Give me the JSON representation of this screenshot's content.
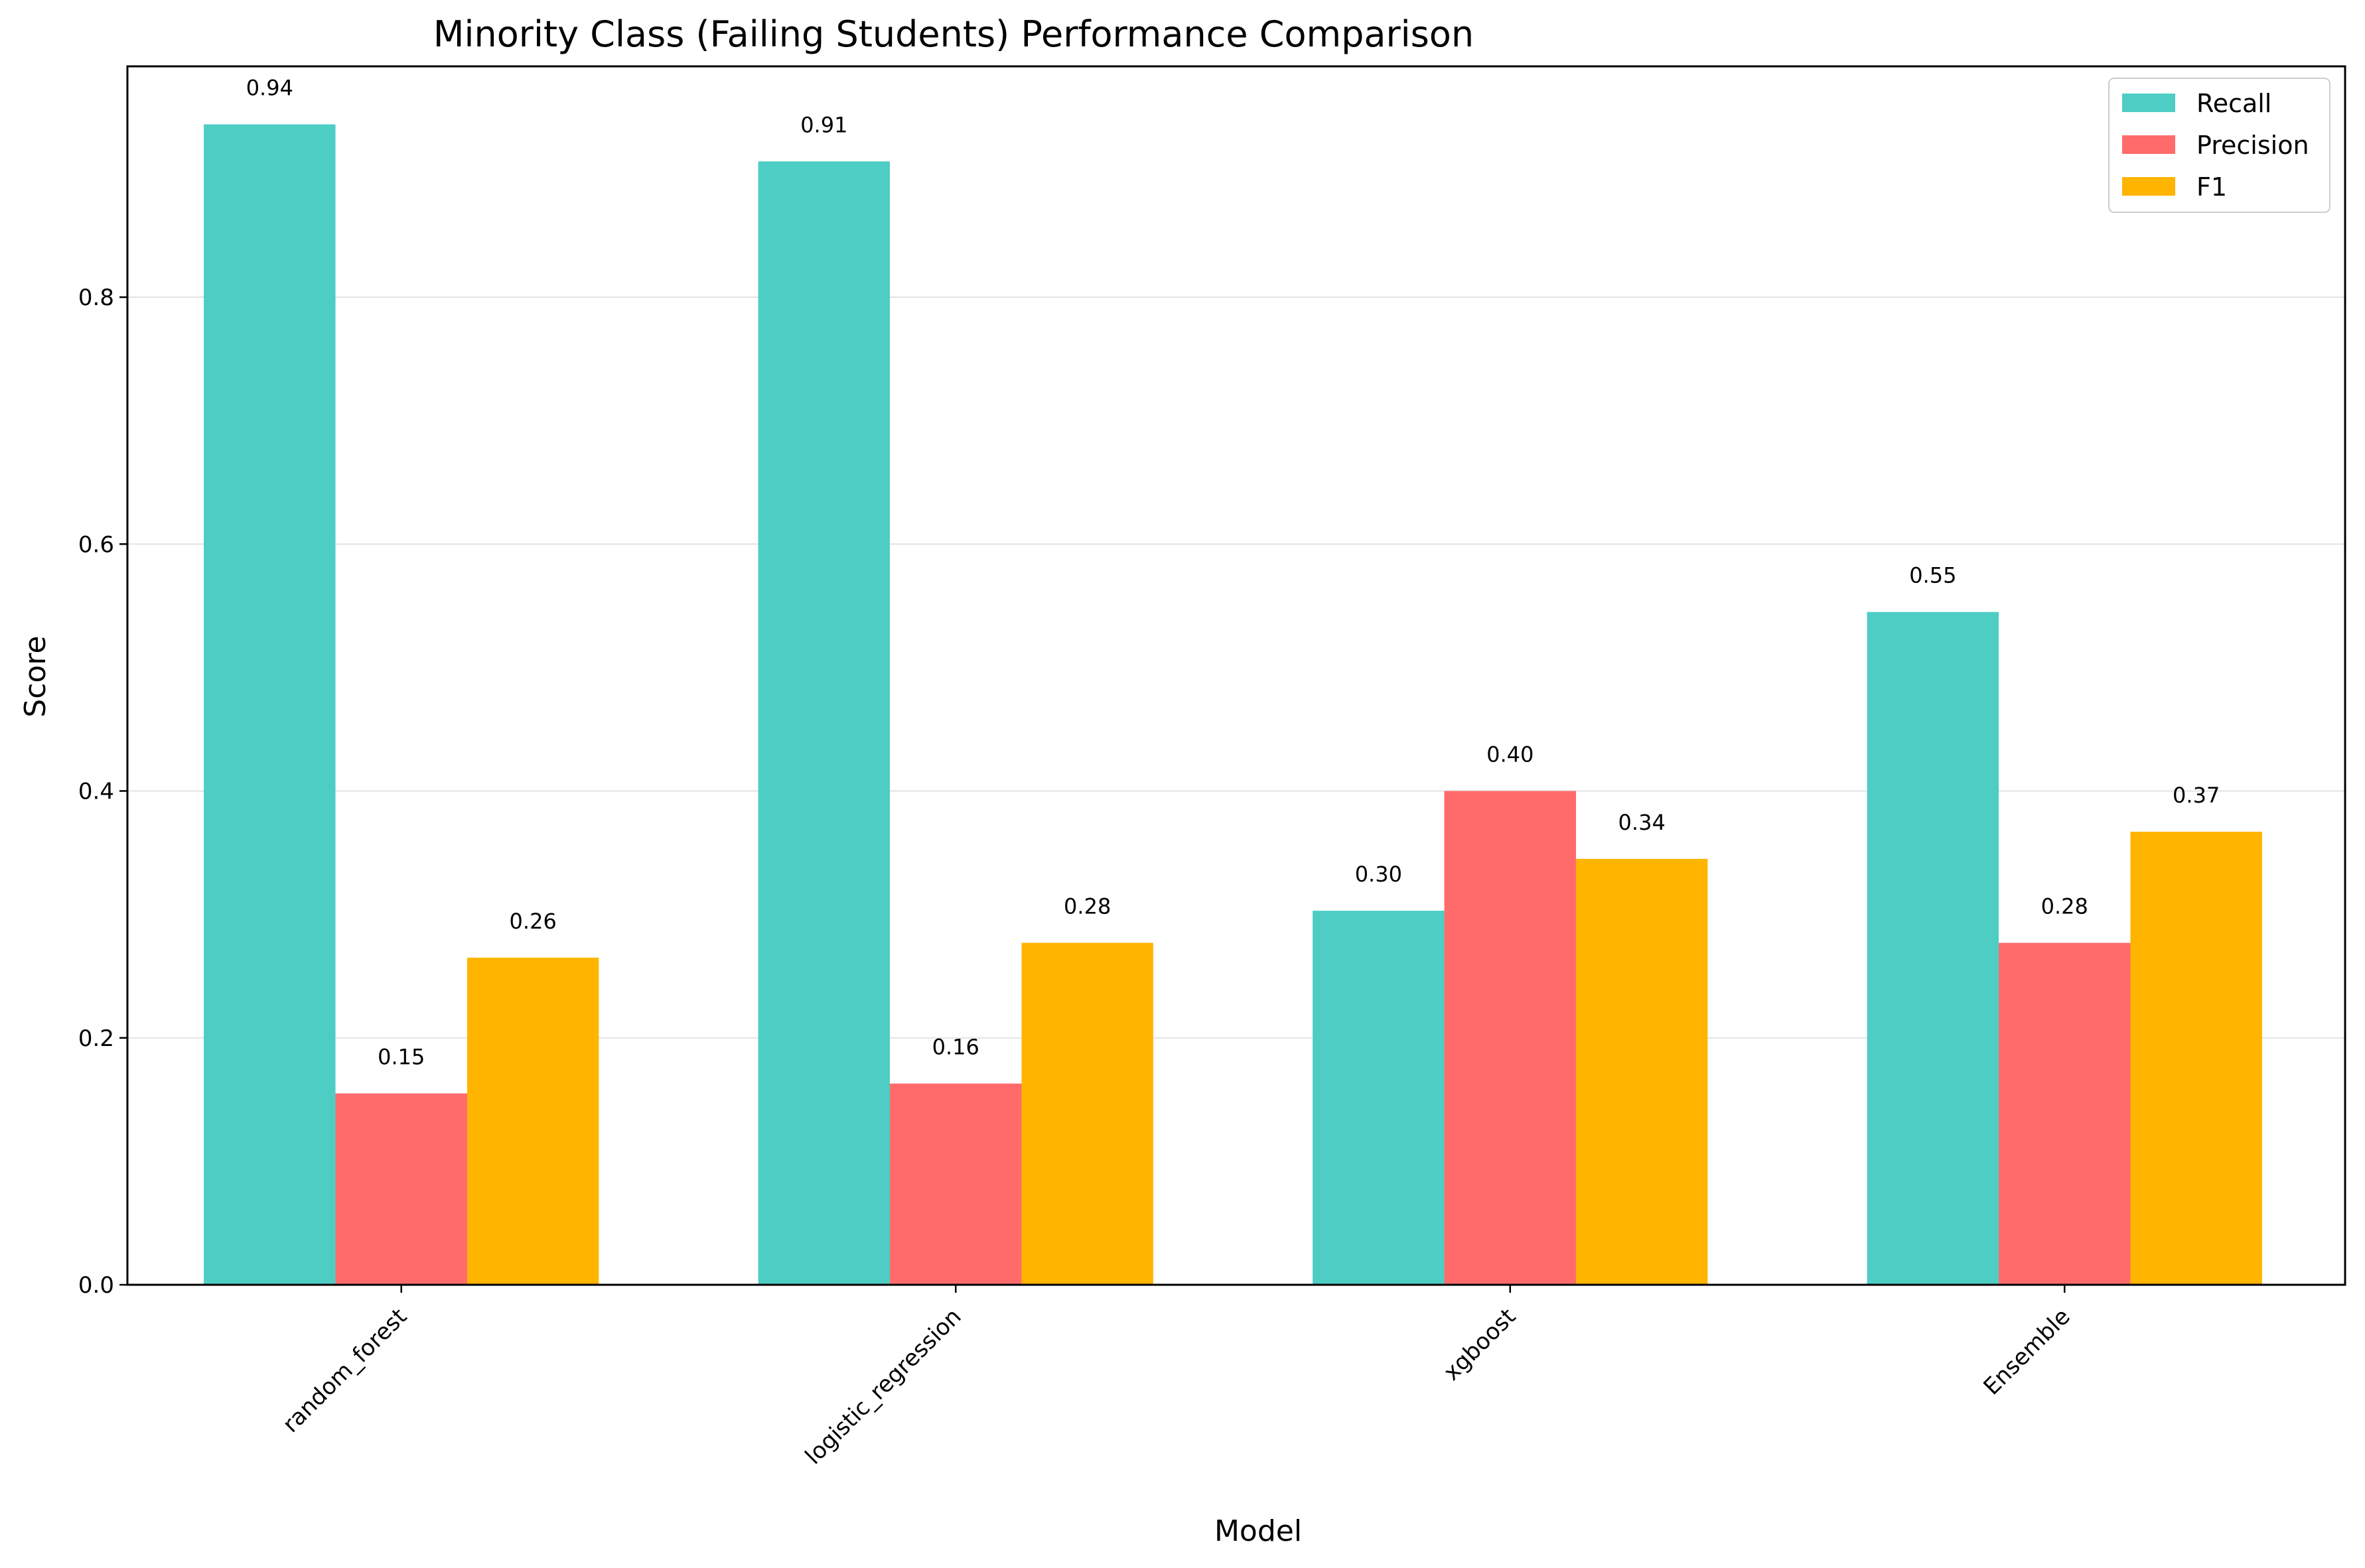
{
  "chart_data": {
    "type": "bar",
    "title": "Minority Class (Failing Students) Performance Comparison",
    "xlabel": "Model",
    "ylabel": "Score",
    "categories": [
      "random_forest",
      "logistic_regression",
      "xgboost",
      "Ensemble"
    ],
    "series": [
      {
        "name": "Recall",
        "color": "#4ECDC4",
        "values": [
          0.94,
          0.91,
          0.303,
          0.545
        ],
        "labels": [
          "0.94",
          "0.91",
          "0.30",
          "0.55"
        ]
      },
      {
        "name": "Precision",
        "color": "#FF6B6B",
        "values": [
          0.155,
          0.163,
          0.4,
          0.277
        ],
        "labels": [
          "0.15",
          "0.16",
          "0.40",
          "0.28"
        ]
      },
      {
        "name": "F1",
        "color": "#FFB400",
        "values": [
          0.265,
          0.277,
          0.345,
          0.367
        ],
        "labels": [
          "0.26",
          "0.28",
          "0.34",
          "0.37"
        ]
      }
    ],
    "yticks": [
      "0.0",
      "0.2",
      "0.4",
      "0.6",
      "0.8"
    ],
    "ylim": [
      0,
      0.987
    ],
    "grid": "y",
    "legend_position": "top-right"
  }
}
